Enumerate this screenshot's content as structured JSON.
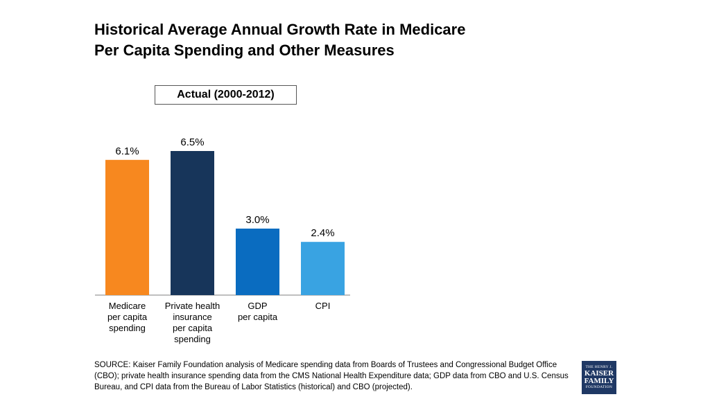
{
  "title_line1": "Historical Average Annual Growth Rate in Medicare",
  "title_line2": "Per Capita Spending and Other Measures",
  "subtitle": "Actual (2000-2012)",
  "source": "SOURCE: Kaiser Family Foundation analysis of Medicare spending data from Boards of Trustees and Congressional Budget Office (CBO); private health insurance spending data from the CMS National Health Expenditure data; GDP data from CBO and U.S. Census Bureau, and CPI data from the Bureau of Labor Statistics (historical) and CBO (projected).",
  "logo": {
    "line1": "THE HENRY J.",
    "line2": "KAISER",
    "line3": "FAMILY",
    "line4": "FOUNDATION"
  },
  "chart_data": {
    "type": "bar",
    "title": "Historical Average Annual Growth Rate in Medicare Per Capita Spending and Other Measures",
    "categories": [
      [
        "Medicare",
        "per capita",
        "spending"
      ],
      [
        "Private health",
        "insurance",
        "per capita",
        "spending"
      ],
      [
        "GDP",
        "per capita"
      ],
      [
        "CPI"
      ]
    ],
    "values": [
      6.1,
      6.5,
      3.0,
      2.4
    ],
    "data_labels": [
      "6.1%",
      "6.5%",
      "3.0%",
      "2.4%"
    ],
    "colors": [
      "#f7881f",
      "#17355a",
      "#0a6cc0",
      "#39a3e2"
    ],
    "ylim": [
      0,
      7
    ],
    "grid": false,
    "legend": "none"
  }
}
